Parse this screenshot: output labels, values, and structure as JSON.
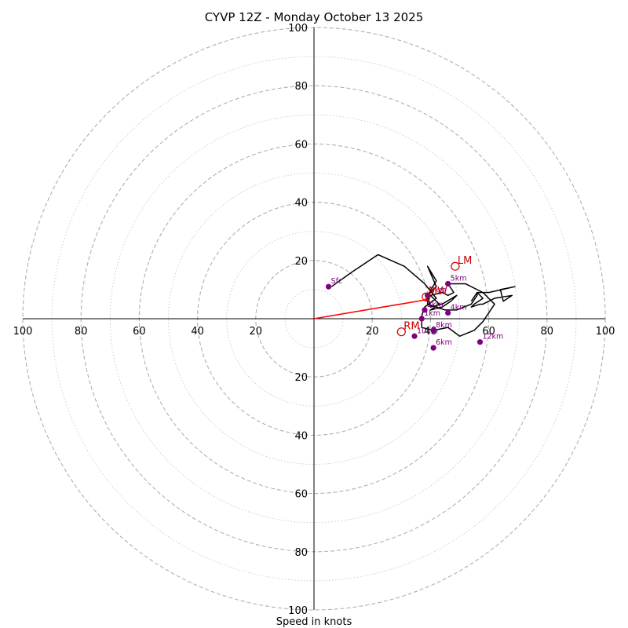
{
  "chart_data": {
    "type": "hodograph",
    "title": "CYVP 12Z - Monday October 13 2025",
    "xlabel": "Speed in knots",
    "max_speed": 100,
    "ring_step_major": 20,
    "ring_step_minor": 10,
    "tick_labels": [
      "20",
      "40",
      "60",
      "80",
      "100"
    ],
    "tick_values": [
      20,
      40,
      60,
      80,
      100
    ],
    "hodograph_points": [
      [
        6,
        11
      ],
      [
        13,
        16
      ],
      [
        22,
        22
      ],
      [
        31,
        18
      ],
      [
        38,
        12
      ],
      [
        42,
        7
      ],
      [
        38,
        4
      ],
      [
        37,
        1
      ],
      [
        37,
        -3
      ],
      [
        41,
        -4
      ],
      [
        46,
        -3
      ],
      [
        50,
        -6
      ],
      [
        55,
        -4
      ],
      [
        58,
        -1
      ],
      [
        60,
        2
      ],
      [
        62,
        5
      ],
      [
        58,
        9
      ],
      [
        52,
        12
      ],
      [
        46,
        12
      ],
      [
        48,
        9
      ],
      [
        46,
        8
      ],
      [
        44,
        9
      ],
      [
        40,
        8
      ],
      [
        43,
        5
      ],
      [
        40,
        3
      ],
      [
        44,
        4
      ],
      [
        47,
        6
      ],
      [
        49,
        8
      ],
      [
        44,
        5
      ],
      [
        40,
        4
      ],
      [
        39,
        8
      ],
      [
        42,
        11
      ],
      [
        39,
        18
      ],
      [
        42,
        13
      ],
      [
        39,
        8
      ],
      [
        39,
        5
      ],
      [
        45,
        3
      ],
      [
        49,
        3
      ],
      [
        54,
        5
      ],
      [
        56,
        8
      ],
      [
        56,
        9
      ],
      [
        58,
        7
      ],
      [
        55,
        5
      ],
      [
        54,
        4
      ],
      [
        57,
        5
      ],
      [
        58,
        5
      ],
      [
        62,
        7
      ],
      [
        68,
        8
      ],
      [
        65,
        6
      ],
      [
        64,
        10
      ],
      [
        69,
        11
      ],
      [
        60,
        9
      ],
      [
        56,
        9
      ],
      [
        54,
        6
      ]
    ],
    "levels": [
      {
        "label": "Sfc",
        "u": 5,
        "v": 11
      },
      {
        "label": "1km",
        "u": 37,
        "v": 0
      },
      {
        "label": "2km",
        "u": 38,
        "v": 3
      },
      {
        "label": "3km",
        "u": 39,
        "v": 8
      },
      {
        "label": "4km",
        "u": 46,
        "v": 2
      },
      {
        "label": "5km",
        "u": 46,
        "v": 12
      },
      {
        "label": "6km",
        "u": 41,
        "v": -10
      },
      {
        "label": "8km",
        "u": 41,
        "v": -4
      },
      {
        "label": "10km",
        "u": 34.5,
        "v": -6
      },
      {
        "label": "12km",
        "u": 57,
        "v": -8
      }
    ],
    "motions": [
      {
        "label": "LM",
        "u": 48.5,
        "v": 18
      },
      {
        "label": "RM",
        "u": 30,
        "v": -4.5
      },
      {
        "label": "MW",
        "u": 38.5,
        "v": 7.5
      }
    ],
    "mean_wind_vector": {
      "u": 38.5,
      "v": 6.5
    },
    "colors": {
      "hodograph": "#000000",
      "levels": "#800080",
      "motions": "#cc0000",
      "vector": "#ff0000",
      "grid_major": "#b0b0b0",
      "grid_minor": "#c8c8c8"
    }
  }
}
